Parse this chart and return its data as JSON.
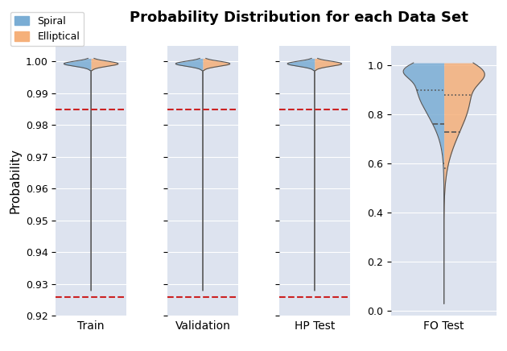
{
  "title": "Probability Distribution for each Data Set",
  "ylabel": "Probability",
  "datasets": [
    "Train",
    "Validation",
    "HP Test",
    "FO Test"
  ],
  "spiral_color": "#7aadd4",
  "elliptical_color": "#f5b07a",
  "legend_spiral": "Spiral",
  "legend_elliptical": "Elliptical",
  "background_color": "#dde3ef",
  "red_line_upper": 0.985,
  "red_line_lower": 0.926,
  "red_color": "#cc2222",
  "ylim_small": [
    0.92,
    1.005
  ],
  "ylim_fo": [
    -0.02,
    1.08
  ],
  "yticks_small": [
    0.92,
    0.93,
    0.94,
    0.95,
    0.96,
    0.97,
    0.98,
    0.99,
    1.0
  ],
  "yticks_fo": [
    0.0,
    0.2,
    0.4,
    0.6,
    0.8,
    1.0
  ],
  "fo_spiral_q1": 0.6,
  "fo_spiral_med": 0.76,
  "fo_spiral_q3": 0.9,
  "fo_elliptical_q1": 0.58,
  "fo_elliptical_med": 0.73,
  "fo_elliptical_q3": 0.88
}
